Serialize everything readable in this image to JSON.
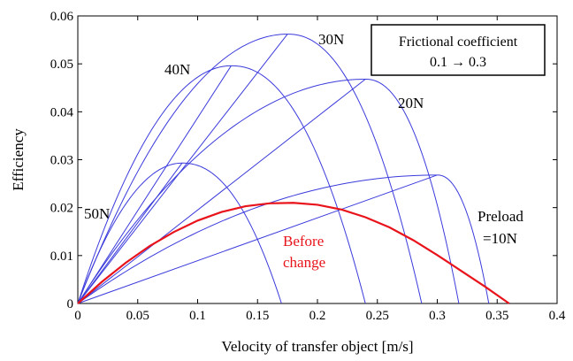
{
  "chart_data": {
    "type": "line",
    "xlabel": "Velocity of transfer object [m/s]",
    "ylabel": "Efficiency",
    "xlim": [
      0,
      0.4
    ],
    "ylim": [
      0,
      0.06
    ],
    "xticks": [
      0,
      0.05,
      0.1,
      0.15,
      0.2,
      0.25,
      0.3,
      0.35,
      0.4
    ],
    "xtick_labels": [
      "0",
      "0.05",
      "0.1",
      "0.15",
      "0.2",
      "0.25",
      "0.3",
      "0.35",
      "0.4"
    ],
    "yticks": [
      0,
      0.01,
      0.02,
      0.03,
      0.04,
      0.05,
      0.06
    ],
    "ytick_labels": [
      "0",
      "0.01",
      "0.02",
      "0.03",
      "0.04",
      "0.05",
      "0.06"
    ],
    "grid": false,
    "legend_box": {
      "line1": "Frictional coefficient",
      "line2": "0.1 → 0.3",
      "placement": "top-right"
    },
    "series": [
      {
        "label": "Preload",
        "label2": "=10N",
        "color": "#3b3bdc",
        "peak_x": 0.3,
        "peak_y": 0.0268,
        "zero_x": 0.343
      },
      {
        "label": "20N",
        "color": "#3b3bdc",
        "peak_x": 0.24,
        "peak_y": 0.0468,
        "zero_x": 0.318
      },
      {
        "label": "30N",
        "color": "#3b3bdc",
        "peak_x": 0.175,
        "peak_y": 0.0562,
        "zero_x": 0.287
      },
      {
        "label": "40N",
        "color": "#3b3bdc",
        "peak_x": 0.128,
        "peak_y": 0.0496,
        "zero_x": 0.24
      },
      {
        "label": "50N",
        "color": "#3b3bdc",
        "peak_x": 0.087,
        "peak_y": 0.0293,
        "zero_x": 0.17
      }
    ],
    "before_change": {
      "label1": "Before",
      "label2": "change",
      "color": "#e8131b",
      "x": [
        0,
        0.02,
        0.04,
        0.06,
        0.08,
        0.1,
        0.12,
        0.14,
        0.16,
        0.18,
        0.2,
        0.22,
        0.24,
        0.26,
        0.28,
        0.3,
        0.32,
        0.34,
        0.36
      ],
      "y": [
        0,
        0.0045,
        0.0085,
        0.012,
        0.0149,
        0.0173,
        0.0191,
        0.0203,
        0.0209,
        0.021,
        0.0206,
        0.0196,
        0.018,
        0.0159,
        0.0132,
        0.0101,
        0.0068,
        0.0035,
        0
      ]
    }
  }
}
